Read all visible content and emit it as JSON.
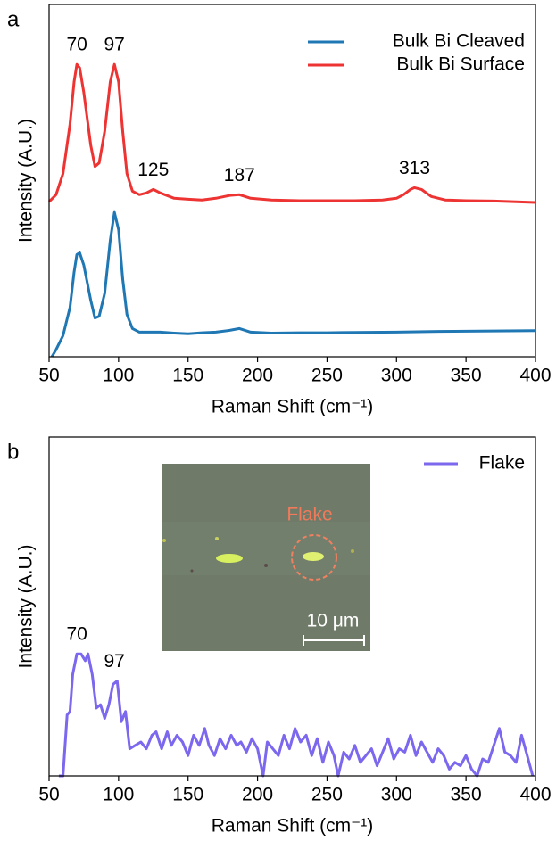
{
  "chart_data": [
    {
      "type": "line",
      "panel_label": "a",
      "xlabel": "Raman Shift (cm⁻¹)",
      "ylabel": "Intensity (A.U.)",
      "xlim": [
        50,
        400
      ],
      "xticks": [
        50,
        100,
        150,
        200,
        250,
        300,
        350,
        400
      ],
      "ylim": [
        0,
        100
      ],
      "legend": "upper right",
      "series": [
        {
          "name": "Bulk Bi Cleaved",
          "color": "#1f77b4",
          "x": [
            52,
            55,
            60,
            65,
            68,
            70,
            72,
            75,
            80,
            83,
            86,
            90,
            94,
            97,
            100,
            103,
            106,
            110,
            115,
            120,
            130,
            140,
            150,
            160,
            170,
            180,
            187,
            195,
            210,
            230,
            250,
            270,
            300,
            330,
            360,
            400
          ],
          "values": [
            0,
            2,
            6,
            14,
            24,
            29,
            29.5,
            26,
            16,
            11,
            11.5,
            18,
            33,
            41,
            36,
            22,
            12,
            8,
            7,
            7,
            7,
            6.7,
            6.5,
            6.8,
            7,
            7.5,
            8,
            7,
            6.7,
            6.8,
            6.8,
            6.9,
            7,
            7.2,
            7.3,
            7.4
          ]
        },
        {
          "name": "Bulk Bi Surface",
          "color": "#ee3333",
          "x": [
            50,
            55,
            60,
            65,
            68,
            70,
            72,
            75,
            80,
            83,
            86,
            90,
            94,
            97,
            100,
            103,
            106,
            110,
            115,
            120,
            125,
            130,
            140,
            150,
            160,
            170,
            180,
            187,
            195,
            210,
            230,
            250,
            270,
            290,
            300,
            305,
            310,
            313,
            318,
            325,
            335,
            350,
            370,
            400
          ],
          "values": [
            44,
            46,
            52,
            66,
            78,
            83,
            82,
            75,
            60,
            54,
            55,
            64,
            78,
            83,
            78,
            64,
            52,
            47,
            46,
            46.5,
            47.5,
            46.5,
            45,
            44.7,
            44.5,
            45,
            45.8,
            46,
            45,
            44.5,
            44.3,
            44.3,
            44.3,
            44.5,
            45,
            46,
            47.5,
            48,
            47.5,
            45.5,
            44.5,
            44.3,
            44.2,
            43.8
          ]
        }
      ],
      "annotations": [
        "70",
        "97",
        "125",
        "187",
        "313"
      ]
    },
    {
      "type": "line",
      "panel_label": "b",
      "xlabel": "Raman Shift (cm⁻¹)",
      "ylabel": "Intensity (A.U.)",
      "xlim": [
        50,
        400
      ],
      "xticks": [
        50,
        100,
        150,
        200,
        250,
        300,
        350,
        400
      ],
      "ylim": [
        0,
        100
      ],
      "legend": "upper right",
      "series": [
        {
          "name": "Flake",
          "color": "#7b68ee",
          "x": [
            57,
            60,
            63,
            65,
            67,
            70,
            73,
            76,
            78,
            81,
            84,
            87,
            90,
            93,
            96,
            99,
            102,
            105,
            108,
            112,
            116,
            120,
            124,
            127,
            131,
            135,
            138,
            142,
            146,
            150,
            154,
            158,
            162,
            165,
            169,
            173,
            177,
            181,
            185,
            188,
            192,
            196,
            200,
            204,
            207,
            211,
            215,
            219,
            223,
            227,
            231,
            235,
            239,
            243,
            247,
            251,
            255,
            258,
            262,
            266,
            270,
            274,
            278,
            282,
            286,
            290,
            294,
            298,
            302,
            306,
            310,
            314,
            318,
            322,
            326,
            330,
            334,
            338,
            342,
            346,
            350,
            354,
            358,
            362,
            366,
            370,
            374,
            378,
            382,
            386,
            390,
            394,
            398
          ],
          "values": [
            0,
            0,
            18,
            19,
            30,
            36,
            36,
            34,
            36,
            30,
            20,
            21,
            17,
            21,
            27,
            28,
            16,
            19,
            8,
            9,
            10,
            8,
            12,
            13,
            8,
            13,
            9,
            12,
            10,
            6,
            12,
            9,
            14,
            9,
            6,
            11,
            8,
            12,
            9,
            10,
            7,
            11,
            8,
            0,
            10,
            8,
            6,
            12,
            8,
            14,
            10,
            12,
            6,
            11,
            4,
            10,
            6,
            0,
            7,
            5,
            9,
            4,
            6,
            8,
            3,
            7,
            11,
            5,
            8,
            7,
            12,
            6,
            10,
            7,
            4,
            8,
            6,
            2,
            4,
            3,
            6,
            2,
            0,
            5,
            4,
            9,
            14,
            7,
            6,
            4,
            12,
            6,
            0
          ]
        }
      ],
      "annotations": [
        "70",
        "97"
      ],
      "inset_label": "Flake",
      "scale_bar": "10 μm"
    }
  ]
}
